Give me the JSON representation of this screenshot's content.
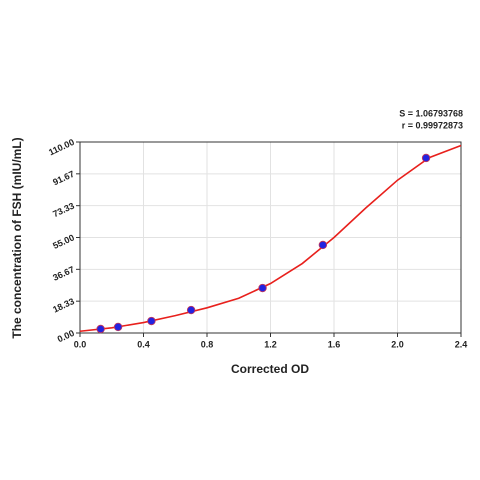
{
  "chart_data": {
    "type": "scatter",
    "xlabel": "Corrected OD",
    "ylabel": "The concentration of FSH (mIU/mL)",
    "annotations": [
      "S = 1.06793768",
      "r = 0.99972873"
    ],
    "xlim": [
      0,
      2.4
    ],
    "ylim": [
      0,
      110
    ],
    "xticks": [
      {
        "value": 0,
        "label": "0.0"
      },
      0.4,
      0.8,
      1.2,
      1.6,
      {
        "value": 2,
        "label": "2.0"
      },
      2.4
    ],
    "yticks": [
      {
        "value": 0,
        "label": "0.00"
      },
      18.33,
      36.67,
      {
        "value": 55,
        "label": "55.00"
      },
      73.33,
      91.67,
      {
        "value": 110,
        "label": "110.00"
      }
    ],
    "grid": true,
    "points": {
      "color": "#2323e0",
      "x": [
        0.13,
        0.24,
        0.45,
        0.7,
        1.15,
        1.53,
        2.18
      ],
      "values": [
        2.3,
        3.5,
        6.9,
        13.2,
        25.9,
        50.7,
        100.8
      ]
    },
    "curve": {
      "color": "#e8201c",
      "x": [
        0,
        0.2,
        0.4,
        0.6,
        0.8,
        1.0,
        1.2,
        1.4,
        1.6,
        1.8,
        2.0,
        2.2,
        2.4
      ],
      "values": [
        1,
        3,
        6,
        10,
        14.5,
        20,
        28.5,
        40,
        55,
        72,
        88,
        101,
        108
      ]
    }
  }
}
